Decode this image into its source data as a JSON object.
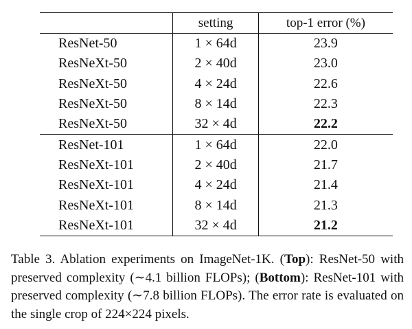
{
  "table": {
    "headers": [
      "",
      "setting",
      "top-1 error (%)"
    ],
    "top_group": [
      {
        "model": "ResNet-50",
        "setting": "1 × 64d",
        "error": "23.9",
        "bold": false
      },
      {
        "model": "ResNeXt-50",
        "setting": "2 × 40d",
        "error": "23.0",
        "bold": false
      },
      {
        "model": "ResNeXt-50",
        "setting": "4 × 24d",
        "error": "22.6",
        "bold": false
      },
      {
        "model": "ResNeXt-50",
        "setting": "8 × 14d",
        "error": "22.3",
        "bold": false
      },
      {
        "model": "ResNeXt-50",
        "setting": "32 × 4d",
        "error": "22.2",
        "bold": true
      }
    ],
    "bottom_group": [
      {
        "model": "ResNet-101",
        "setting": "1 × 64d",
        "error": "22.0",
        "bold": false
      },
      {
        "model": "ResNeXt-101",
        "setting": "2 × 40d",
        "error": "21.7",
        "bold": false
      },
      {
        "model": "ResNeXt-101",
        "setting": "4 × 24d",
        "error": "21.4",
        "bold": false
      },
      {
        "model": "ResNeXt-101",
        "setting": "8 × 14d",
        "error": "21.3",
        "bold": false
      },
      {
        "model": "ResNeXt-101",
        "setting": "32 × 4d",
        "error": "21.2",
        "bold": true
      }
    ]
  },
  "caption": {
    "part1": "Table 3. Ablation experiments on ImageNet-1K. (",
    "bold1": "Top",
    "part2": "): ResNet-50 with preserved complexity (∼4.1 billion FLOPs); (",
    "bold2": "Bottom",
    "part3": "): ResNet-101 with preserved complexity (∼7.8 billion FLOPs). The error rate is evaluated on the single crop of 224×224 pixels."
  }
}
